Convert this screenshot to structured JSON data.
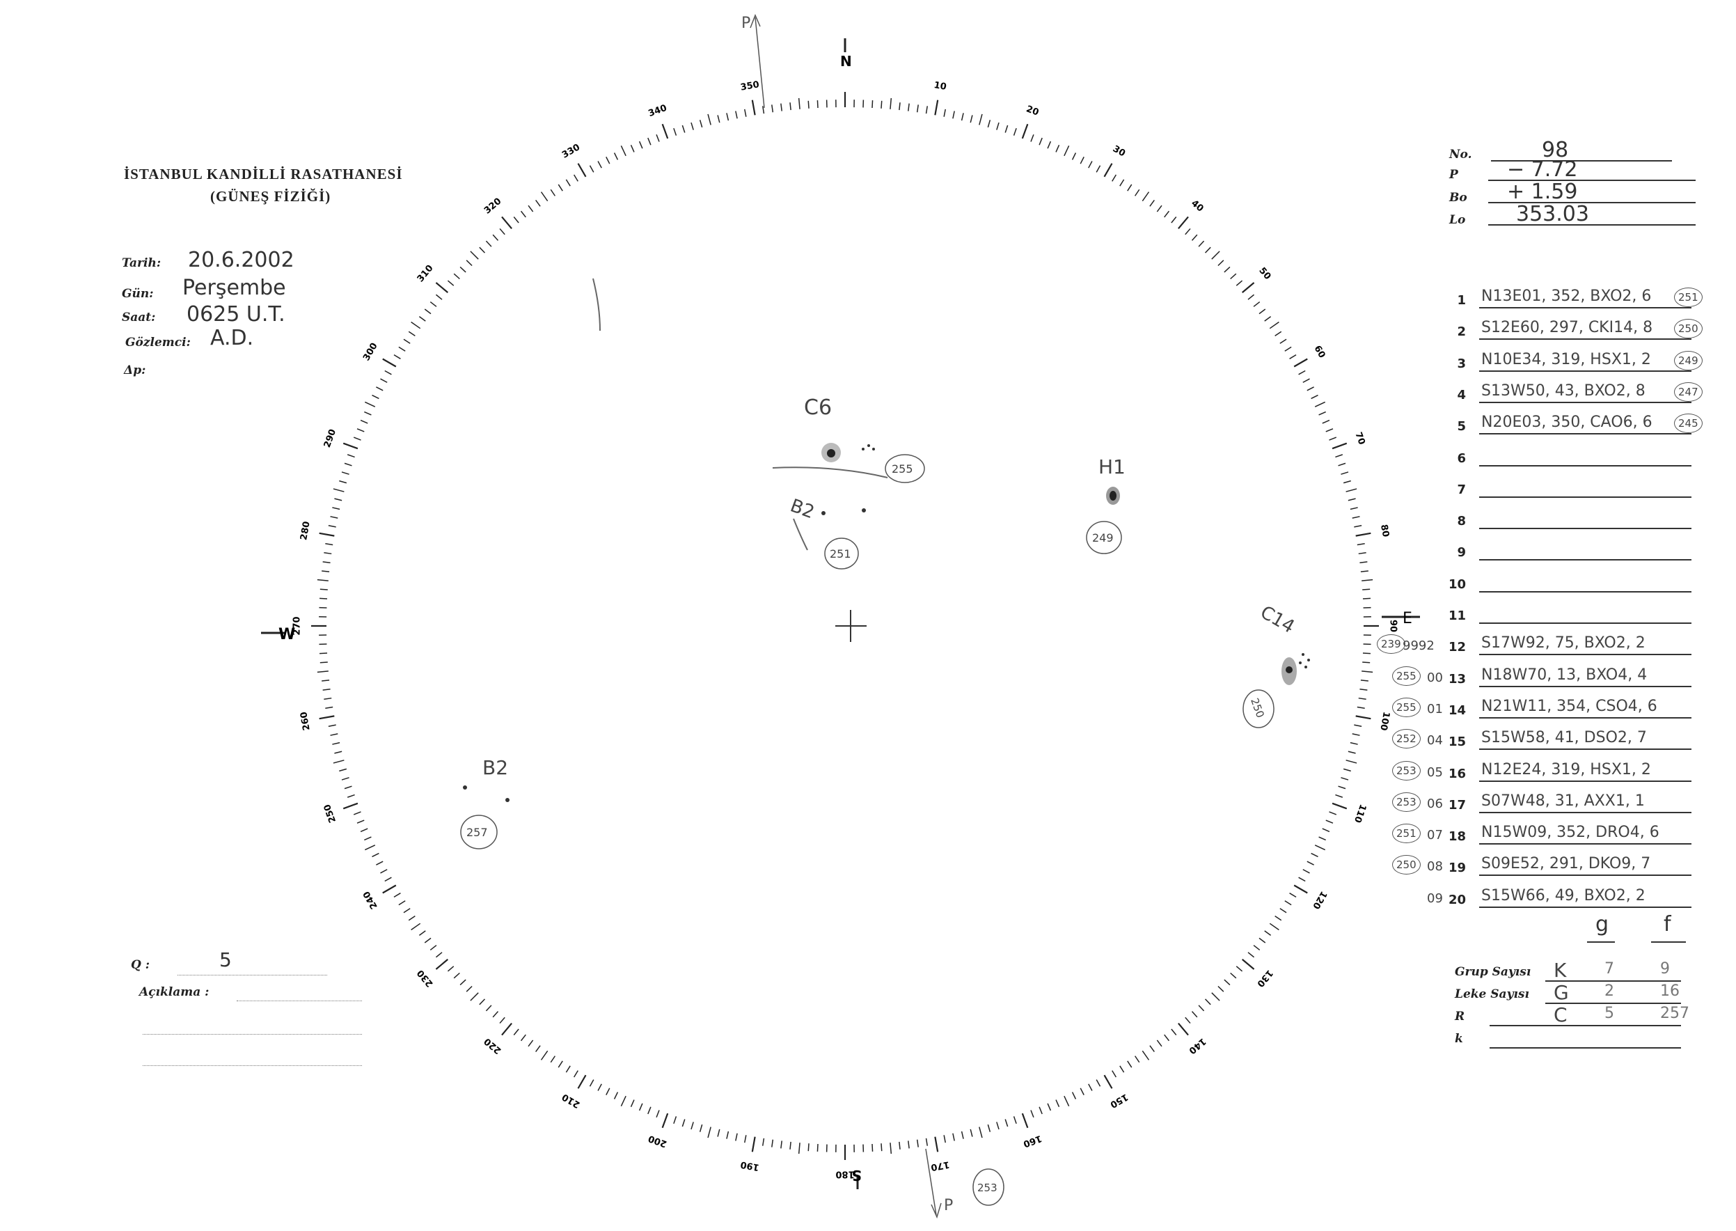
{
  "header": {
    "institute": "İSTANBUL KANDİLLİ RASATHANESİ",
    "department": "(GÜNEŞ FİZİĞİ)"
  },
  "observation": {
    "date_label": "Tarih:",
    "date": "20.6.2002",
    "day_label": "Gün:",
    "day": "Perşembe",
    "time_label": "Saat:",
    "time": "0625 U.T.",
    "observer_label": "Gözlemci:",
    "observer": "A.D.",
    "dp_label": "Δp:"
  },
  "quality": {
    "q_label": "Q :",
    "q": "5",
    "note_label": "Açıklama :"
  },
  "ephemeris": {
    "no_label": "No.",
    "no": "98",
    "p_label": "P",
    "p": "− 7.72",
    "bo_label": "Bo",
    "bo": "+ 1.59",
    "lo_label": "Lo",
    "lo": "353.03"
  },
  "groups": [
    {
      "n": "1",
      "text": "N13E01, 352, BXO2, 6",
      "circled": "251",
      "prefix": ""
    },
    {
      "n": "2",
      "text": "S12E60, 297, CKI14, 8",
      "circled": "250",
      "prefix": ""
    },
    {
      "n": "3",
      "text": "N10E34, 319, HSX1, 2",
      "circled": "249",
      "prefix": ""
    },
    {
      "n": "4",
      "text": "S13W50, 43, BXO2, 8",
      "circled": "247",
      "prefix": ""
    },
    {
      "n": "5",
      "text": "N20E03, 350, CAO6, 6",
      "circled": "245",
      "prefix": ""
    },
    {
      "n": "6",
      "text": "",
      "circled": "",
      "prefix": ""
    },
    {
      "n": "7",
      "text": "",
      "circled": "",
      "prefix": ""
    },
    {
      "n": "8",
      "text": "",
      "circled": "",
      "prefix": ""
    },
    {
      "n": "9",
      "text": "",
      "circled": "",
      "prefix": ""
    },
    {
      "n": "10",
      "text": "",
      "circled": "",
      "prefix": ""
    },
    {
      "n": "11",
      "text": "",
      "circled": "",
      "prefix": ""
    },
    {
      "n": "12",
      "text": "S17W92, 75, BXO2, 2",
      "circled": "239",
      "prefix": "9992"
    },
    {
      "n": "13",
      "text": "N18W70, 13, BXO4, 4",
      "circled": "255",
      "prefix": "00"
    },
    {
      "n": "14",
      "text": "N21W11, 354, CSO4, 6",
      "circled": "255",
      "prefix": "01"
    },
    {
      "n": "15",
      "text": "S15W58, 41, DSO2, 7",
      "circled": "252",
      "prefix": "04"
    },
    {
      "n": "16",
      "text": "N12E24, 319, HSX1, 2",
      "circled": "253",
      "prefix": "05"
    },
    {
      "n": "17",
      "text": "S07W48, 31, AXX1, 1",
      "circled": "253",
      "prefix": "06"
    },
    {
      "n": "18",
      "text": "N15W09, 352, DRO4, 6",
      "circled": "251",
      "prefix": "07"
    },
    {
      "n": "19",
      "text": "S09E52, 291, DKO9, 7",
      "circled": "250",
      "prefix": "08"
    },
    {
      "n": "20",
      "text": "S15W66, 49, BXO2, 2",
      "circled": "",
      "prefix": "09"
    }
  ],
  "totals_header": {
    "g": "g",
    "f": "f"
  },
  "totals": [
    {
      "label": "Grup Sayısı",
      "a": "K",
      "b": "7",
      "c": "9"
    },
    {
      "label": "Leke Sayısı",
      "a": "G",
      "b": "2",
      "c": "16"
    },
    {
      "label": "R",
      "a": "C",
      "b": "5",
      "c": "257"
    },
    {
      "label": "k",
      "a": "",
      "b": "",
      "c": ""
    }
  ],
  "disk": {
    "north_label": "N",
    "south_label": "S",
    "east_label": "E",
    "west_label": "W",
    "p_axis_top": "P",
    "p_axis_bottom": "P",
    "spots": [
      {
        "label": "C6",
        "circled": "255"
      },
      {
        "label": "B2",
        "circled": "251"
      },
      {
        "label": "H1",
        "circled": "249"
      },
      {
        "label": "C14",
        "circled": "250"
      },
      {
        "label": "B2",
        "circled": "257"
      }
    ],
    "bottom_circled": "253"
  }
}
